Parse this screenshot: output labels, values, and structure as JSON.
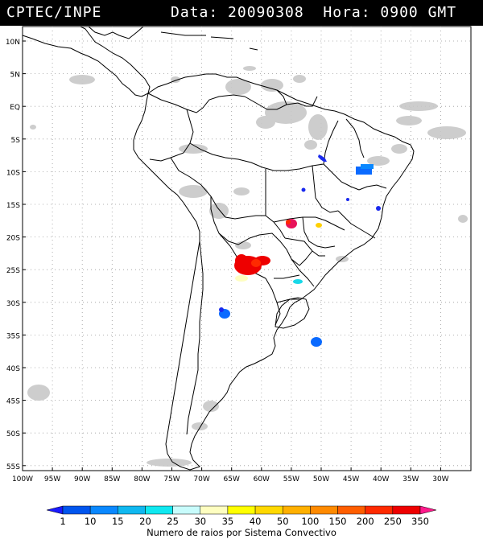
{
  "header": {
    "left_text": "CPTEC/INPE",
    "right_text": "Data: 20090308  Hora: 0900 GMT"
  },
  "map": {
    "lat_labels": [
      "10N",
      "5N",
      "EQ",
      "5S",
      "10S",
      "15S",
      "20S",
      "25S",
      "30S",
      "35S",
      "40S",
      "45S",
      "50S",
      "55S"
    ],
    "lon_labels": [
      "100W",
      "95W",
      "90W",
      "85W",
      "80W",
      "75W",
      "70W",
      "65W",
      "60W",
      "55W",
      "50W",
      "45W",
      "40W",
      "35W",
      "30W"
    ],
    "grid": "dotted",
    "land_outline_color": "#000000",
    "cloud_color": "#c8c8c8"
  },
  "legend": {
    "title": "Numero de raios por Sistema Convectivo",
    "tick_labels": [
      "1",
      "10",
      "15",
      "20",
      "25",
      "30",
      "35",
      "40",
      "50",
      "100",
      "150",
      "200",
      "250",
      "350"
    ],
    "colors": [
      "#1a1aff",
      "#0055ee",
      "#0a88ff",
      "#10b8f0",
      "#10e8f0",
      "#c8fcfc",
      "#fefec0",
      "#ffff00",
      "#ffd800",
      "#ffb000",
      "#ff8a00",
      "#ff5e00",
      "#ff2a00",
      "#ee0000",
      "#ff1a8c"
    ]
  },
  "systems": [
    {
      "color": "#1a2aee",
      "count_class": "1"
    },
    {
      "color": "#0a6aff",
      "count_class": "10"
    },
    {
      "color": "#e8125a",
      "count_class": "350"
    },
    {
      "color": "#ee0000",
      "count_class": "250"
    },
    {
      "color": "#18d8e8",
      "count_class": "25"
    },
    {
      "color": "#ffd000",
      "count_class": "50"
    }
  ]
}
